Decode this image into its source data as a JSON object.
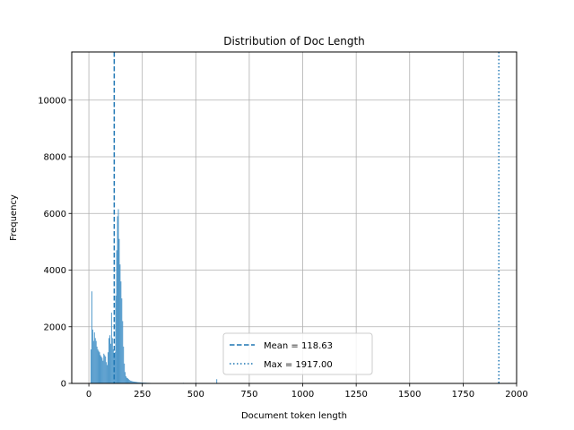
{
  "chart_data": {
    "type": "bar",
    "title": "Distribution of Doc Length",
    "xlabel": "Document token length",
    "ylabel": "Frequency",
    "xlim": [
      -80,
      2000
    ],
    "ylim": [
      0,
      11700
    ],
    "xticks": [
      0,
      250,
      500,
      750,
      1000,
      1250,
      1500,
      1750,
      2000
    ],
    "yticks": [
      0,
      2000,
      4000,
      6000,
      8000,
      10000
    ],
    "grid": true,
    "bar_color": "#4c96c9",
    "line_color": "#1f77b4",
    "bin_width": 4,
    "bins": [
      [
        8,
        1200
      ],
      [
        12,
        3250
      ],
      [
        16,
        1900
      ],
      [
        20,
        1500
      ],
      [
        24,
        1800
      ],
      [
        28,
        1600
      ],
      [
        32,
        1500
      ],
      [
        36,
        1300
      ],
      [
        40,
        1200
      ],
      [
        44,
        1150
      ],
      [
        48,
        1100
      ],
      [
        52,
        1000
      ],
      [
        56,
        950
      ],
      [
        60,
        900
      ],
      [
        64,
        800
      ],
      [
        68,
        1050
      ],
      [
        72,
        1000
      ],
      [
        76,
        950
      ],
      [
        80,
        750
      ],
      [
        84,
        650
      ],
      [
        88,
        1100
      ],
      [
        92,
        1600
      ],
      [
        96,
        1700
      ],
      [
        100,
        1400
      ],
      [
        104,
        2500
      ],
      [
        108,
        1600
      ],
      [
        112,
        1200
      ],
      [
        116,
        900
      ],
      [
        120,
        1100
      ],
      [
        124,
        3100
      ],
      [
        128,
        4700
      ],
      [
        132,
        5900
      ],
      [
        136,
        6150
      ],
      [
        140,
        5100
      ],
      [
        144,
        4200
      ],
      [
        148,
        3600
      ],
      [
        152,
        3000
      ],
      [
        156,
        2200
      ],
      [
        160,
        1300
      ],
      [
        164,
        700
      ],
      [
        168,
        400
      ],
      [
        172,
        250
      ],
      [
        176,
        200
      ],
      [
        180,
        180
      ],
      [
        184,
        150
      ],
      [
        188,
        120
      ],
      [
        192,
        100
      ],
      [
        196,
        90
      ],
      [
        200,
        80
      ],
      [
        204,
        70
      ],
      [
        208,
        65
      ],
      [
        212,
        60
      ],
      [
        216,
        55
      ],
      [
        220,
        50
      ],
      [
        224,
        45
      ],
      [
        228,
        42
      ],
      [
        232,
        40
      ],
      [
        236,
        38
      ],
      [
        240,
        35
      ],
      [
        244,
        32
      ],
      [
        248,
        30
      ],
      [
        252,
        28
      ],
      [
        256,
        26
      ],
      [
        260,
        25
      ],
      [
        264,
        24
      ],
      [
        268,
        22
      ],
      [
        272,
        20
      ],
      [
        276,
        20
      ],
      [
        280,
        18
      ],
      [
        284,
        18
      ],
      [
        288,
        16
      ],
      [
        292,
        15
      ],
      [
        296,
        15
      ],
      [
        300,
        14
      ],
      [
        304,
        12
      ],
      [
        308,
        12
      ],
      [
        312,
        12
      ],
      [
        316,
        10
      ],
      [
        320,
        10
      ],
      [
        324,
        10
      ],
      [
        328,
        9
      ],
      [
        332,
        9
      ],
      [
        336,
        8
      ],
      [
        340,
        8
      ],
      [
        344,
        8
      ],
      [
        348,
        7
      ],
      [
        352,
        7
      ],
      [
        356,
        6
      ],
      [
        360,
        6
      ],
      [
        364,
        6
      ],
      [
        368,
        5
      ],
      [
        372,
        5
      ],
      [
        376,
        5
      ],
      [
        380,
        5
      ],
      [
        384,
        4
      ],
      [
        388,
        4
      ],
      [
        392,
        4
      ],
      [
        396,
        4
      ],
      [
        400,
        4
      ],
      [
        440,
        20
      ],
      [
        472,
        15
      ],
      [
        500,
        25
      ],
      [
        596,
        150
      ]
    ],
    "mean_line": {
      "x": 118.63,
      "label": "Mean = 118.63",
      "style": "dashed"
    },
    "max_line": {
      "x": 1917.0,
      "label": "Max = 1917.00",
      "style": "dotted"
    },
    "legend": {
      "placement": "lower-center",
      "entries": [
        "Mean = 118.63",
        "Max = 1917.00"
      ]
    }
  }
}
